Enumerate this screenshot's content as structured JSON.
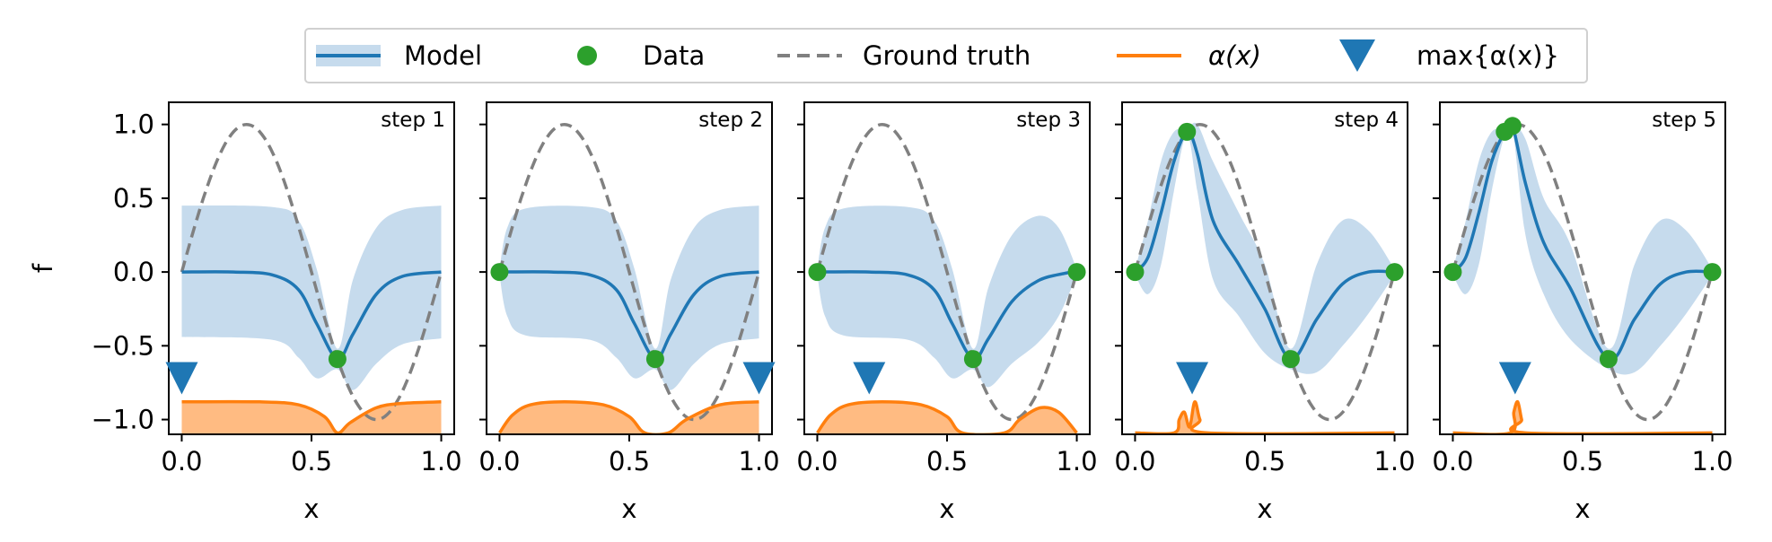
{
  "legend": {
    "entries": [
      {
        "label": "Model",
        "symbol": "band-line"
      },
      {
        "label": "Data",
        "symbol": "circle"
      },
      {
        "label": "Ground truth",
        "symbol": "dashed-line"
      },
      {
        "label": "α(x)",
        "symbol": "line"
      },
      {
        "label": "max{α(x)}",
        "symbol": "down-triangle"
      }
    ]
  },
  "colors": {
    "model": "#1f77b4",
    "band": "#c6dbed",
    "data": "#2ca02c",
    "truth": "#808080",
    "acq": "#ff7f0e",
    "acq_fill": "#ffbb82",
    "marker": "#1f77b4"
  },
  "chart_data": [
    {
      "type": "line",
      "panel_label": "step 1",
      "xlabel": "x",
      "ylabel": "f",
      "xlim": [
        -0.05,
        1.05
      ],
      "ylim": [
        -1.1,
        1.15
      ],
      "xticks": [
        "0.0",
        "0.5",
        "1.0"
      ],
      "yticks": [
        "1.0",
        "0.5",
        "0.0",
        "−0.5",
        "−1.0"
      ],
      "data_points": [
        [
          0.6,
          -0.59
        ]
      ],
      "model_mean": [
        [
          0.0,
          0.0
        ],
        [
          0.2,
          0.0
        ],
        [
          0.35,
          -0.02
        ],
        [
          0.45,
          -0.12
        ],
        [
          0.52,
          -0.35
        ],
        [
          0.6,
          -0.59
        ],
        [
          0.66,
          -0.42
        ],
        [
          0.75,
          -0.15
        ],
        [
          0.85,
          -0.03
        ],
        [
          1.0,
          0.0
        ]
      ],
      "model_upper": [
        [
          0.0,
          0.45
        ],
        [
          0.35,
          0.44
        ],
        [
          0.45,
          0.35
        ],
        [
          0.52,
          0.02
        ],
        [
          0.6,
          -0.52
        ],
        [
          0.66,
          -0.05
        ],
        [
          0.75,
          0.3
        ],
        [
          0.85,
          0.42
        ],
        [
          1.0,
          0.45
        ]
      ],
      "model_lower": [
        [
          0.0,
          -0.44
        ],
        [
          0.35,
          -0.46
        ],
        [
          0.45,
          -0.58
        ],
        [
          0.52,
          -0.72
        ],
        [
          0.6,
          -0.66
        ],
        [
          0.66,
          -0.8
        ],
        [
          0.75,
          -0.62
        ],
        [
          0.85,
          -0.49
        ],
        [
          1.0,
          -0.45
        ]
      ],
      "acquisition": [
        [
          0.0,
          -0.88
        ],
        [
          0.3,
          -0.88
        ],
        [
          0.45,
          -0.9
        ],
        [
          0.55,
          -0.98
        ],
        [
          0.6,
          -1.09
        ],
        [
          0.65,
          -1.02
        ],
        [
          0.75,
          -0.92
        ],
        [
          0.85,
          -0.89
        ],
        [
          1.0,
          -0.88
        ]
      ],
      "max_marker": [
        0.0,
        -0.72
      ]
    },
    {
      "type": "line",
      "panel_label": "step 2",
      "xlabel": "x",
      "xlim": [
        -0.05,
        1.05
      ],
      "ylim": [
        -1.1,
        1.15
      ],
      "xticks": [
        "0.0",
        "0.5",
        "1.0"
      ],
      "data_points": [
        [
          0.0,
          0.0
        ],
        [
          0.6,
          -0.59
        ]
      ],
      "model_mean": [
        [
          0.0,
          0.0
        ],
        [
          0.2,
          0.0
        ],
        [
          0.35,
          -0.02
        ],
        [
          0.45,
          -0.12
        ],
        [
          0.52,
          -0.35
        ],
        [
          0.6,
          -0.59
        ],
        [
          0.66,
          -0.42
        ],
        [
          0.75,
          -0.15
        ],
        [
          0.85,
          -0.03
        ],
        [
          1.0,
          0.0
        ]
      ],
      "model_upper": [
        [
          0.0,
          0.02
        ],
        [
          0.03,
          0.3
        ],
        [
          0.1,
          0.43
        ],
        [
          0.35,
          0.44
        ],
        [
          0.45,
          0.35
        ],
        [
          0.52,
          0.02
        ],
        [
          0.6,
          -0.52
        ],
        [
          0.66,
          -0.05
        ],
        [
          0.75,
          0.3
        ],
        [
          0.85,
          0.42
        ],
        [
          1.0,
          0.45
        ]
      ],
      "model_lower": [
        [
          0.0,
          -0.02
        ],
        [
          0.03,
          -0.3
        ],
        [
          0.1,
          -0.43
        ],
        [
          0.35,
          -0.46
        ],
        [
          0.45,
          -0.58
        ],
        [
          0.52,
          -0.72
        ],
        [
          0.6,
          -0.66
        ],
        [
          0.66,
          -0.8
        ],
        [
          0.75,
          -0.62
        ],
        [
          0.85,
          -0.49
        ],
        [
          1.0,
          -0.45
        ]
      ],
      "acquisition": [
        [
          0.0,
          -1.09
        ],
        [
          0.05,
          -0.97
        ],
        [
          0.12,
          -0.9
        ],
        [
          0.25,
          -0.88
        ],
        [
          0.4,
          -0.9
        ],
        [
          0.5,
          -0.98
        ],
        [
          0.56,
          -1.09
        ],
        [
          0.65,
          -1.09
        ],
        [
          0.72,
          -1.0
        ],
        [
          0.85,
          -0.9
        ],
        [
          1.0,
          -0.88
        ]
      ],
      "max_marker": [
        1.0,
        -0.72
      ]
    },
    {
      "type": "line",
      "panel_label": "step 3",
      "xlabel": "x",
      "xlim": [
        -0.05,
        1.05
      ],
      "ylim": [
        -1.1,
        1.15
      ],
      "xticks": [
        "0.0",
        "0.5",
        "1.0"
      ],
      "data_points": [
        [
          0.0,
          0.0
        ],
        [
          0.6,
          -0.59
        ],
        [
          1.0,
          0.0
        ]
      ],
      "model_mean": [
        [
          0.0,
          0.0
        ],
        [
          0.2,
          0.0
        ],
        [
          0.35,
          -0.02
        ],
        [
          0.45,
          -0.12
        ],
        [
          0.52,
          -0.35
        ],
        [
          0.6,
          -0.59
        ],
        [
          0.66,
          -0.45
        ],
        [
          0.75,
          -0.2
        ],
        [
          0.85,
          -0.06
        ],
        [
          0.95,
          -0.01
        ],
        [
          1.0,
          0.0
        ]
      ],
      "model_upper": [
        [
          0.0,
          0.02
        ],
        [
          0.03,
          0.3
        ],
        [
          0.1,
          0.43
        ],
        [
          0.35,
          0.44
        ],
        [
          0.45,
          0.35
        ],
        [
          0.52,
          0.02
        ],
        [
          0.6,
          -0.52
        ],
        [
          0.66,
          -0.1
        ],
        [
          0.75,
          0.25
        ],
        [
          0.85,
          0.38
        ],
        [
          0.93,
          0.3
        ],
        [
          1.0,
          0.02
        ]
      ],
      "model_lower": [
        [
          0.0,
          -0.02
        ],
        [
          0.03,
          -0.3
        ],
        [
          0.1,
          -0.43
        ],
        [
          0.35,
          -0.46
        ],
        [
          0.45,
          -0.58
        ],
        [
          0.52,
          -0.72
        ],
        [
          0.6,
          -0.66
        ],
        [
          0.66,
          -0.78
        ],
        [
          0.75,
          -0.62
        ],
        [
          0.85,
          -0.48
        ],
        [
          0.93,
          -0.3
        ],
        [
          1.0,
          -0.02
        ]
      ],
      "acquisition": [
        [
          0.0,
          -1.09
        ],
        [
          0.05,
          -0.97
        ],
        [
          0.12,
          -0.9
        ],
        [
          0.25,
          -0.88
        ],
        [
          0.4,
          -0.9
        ],
        [
          0.5,
          -0.98
        ],
        [
          0.56,
          -1.09
        ],
        [
          0.72,
          -1.09
        ],
        [
          0.78,
          -1.0
        ],
        [
          0.86,
          -0.92
        ],
        [
          0.93,
          -0.95
        ],
        [
          1.0,
          -1.09
        ]
      ],
      "max_marker": [
        0.2,
        -0.72
      ]
    },
    {
      "type": "line",
      "panel_label": "step 4",
      "xlabel": "x",
      "xlim": [
        -0.05,
        1.05
      ],
      "ylim": [
        -1.1,
        1.15
      ],
      "xticks": [
        "0.0",
        "0.5",
        "1.0"
      ],
      "data_points": [
        [
          0.0,
          0.0
        ],
        [
          0.2,
          0.95
        ],
        [
          0.6,
          -0.59
        ],
        [
          1.0,
          0.0
        ]
      ],
      "model_mean": [
        [
          0.0,
          0.0
        ],
        [
          0.05,
          0.1
        ],
        [
          0.1,
          0.4
        ],
        [
          0.15,
          0.75
        ],
        [
          0.2,
          0.95
        ],
        [
          0.24,
          0.8
        ],
        [
          0.3,
          0.35
        ],
        [
          0.4,
          0.05
        ],
        [
          0.5,
          -0.25
        ],
        [
          0.6,
          -0.59
        ],
        [
          0.7,
          -0.32
        ],
        [
          0.8,
          -0.08
        ],
        [
          0.9,
          0.0
        ],
        [
          1.0,
          0.0
        ]
      ],
      "model_upper": [
        [
          0.0,
          0.02
        ],
        [
          0.05,
          0.35
        ],
        [
          0.1,
          0.75
        ],
        [
          0.15,
          0.95
        ],
        [
          0.2,
          0.97
        ],
        [
          0.24,
          1.0
        ],
        [
          0.3,
          0.75
        ],
        [
          0.4,
          0.4
        ],
        [
          0.5,
          0.05
        ],
        [
          0.6,
          -0.52
        ],
        [
          0.7,
          0.05
        ],
        [
          0.8,
          0.35
        ],
        [
          0.9,
          0.28
        ],
        [
          1.0,
          0.02
        ]
      ],
      "model_lower": [
        [
          0.0,
          -0.02
        ],
        [
          0.05,
          -0.15
        ],
        [
          0.1,
          0.05
        ],
        [
          0.15,
          0.55
        ],
        [
          0.2,
          0.93
        ],
        [
          0.24,
          0.55
        ],
        [
          0.3,
          -0.05
        ],
        [
          0.4,
          -0.3
        ],
        [
          0.5,
          -0.55
        ],
        [
          0.6,
          -0.66
        ],
        [
          0.7,
          -0.68
        ],
        [
          0.8,
          -0.5
        ],
        [
          0.9,
          -0.28
        ],
        [
          1.0,
          -0.02
        ]
      ],
      "acquisition": [
        [
          0.0,
          -1.09
        ],
        [
          0.15,
          -1.09
        ],
        [
          0.17,
          -1.0
        ],
        [
          0.19,
          -0.95
        ],
        [
          0.21,
          -1.05
        ],
        [
          0.23,
          -0.88
        ],
        [
          0.25,
          -1.0
        ],
        [
          0.28,
          -1.09
        ],
        [
          1.0,
          -1.09
        ]
      ],
      "max_marker": [
        0.22,
        -0.72
      ]
    },
    {
      "type": "line",
      "panel_label": "step 5",
      "xlabel": "x",
      "xlim": [
        -0.05,
        1.05
      ],
      "ylim": [
        -1.1,
        1.15
      ],
      "xticks": [
        "0.0",
        "0.5",
        "1.0"
      ],
      "data_points": [
        [
          0.0,
          0.0
        ],
        [
          0.2,
          0.95
        ],
        [
          0.23,
          0.99
        ],
        [
          0.6,
          -0.59
        ],
        [
          1.0,
          0.0
        ]
      ],
      "model_mean": [
        [
          0.0,
          0.0
        ],
        [
          0.05,
          0.1
        ],
        [
          0.1,
          0.4
        ],
        [
          0.15,
          0.75
        ],
        [
          0.2,
          0.95
        ],
        [
          0.23,
          0.99
        ],
        [
          0.28,
          0.6
        ],
        [
          0.35,
          0.2
        ],
        [
          0.45,
          -0.1
        ],
        [
          0.6,
          -0.59
        ],
        [
          0.7,
          -0.32
        ],
        [
          0.8,
          -0.08
        ],
        [
          0.9,
          0.0
        ],
        [
          1.0,
          0.0
        ]
      ],
      "model_upper": [
        [
          0.0,
          0.02
        ],
        [
          0.05,
          0.35
        ],
        [
          0.1,
          0.75
        ],
        [
          0.15,
          0.95
        ],
        [
          0.2,
          0.97
        ],
        [
          0.23,
          1.0
        ],
        [
          0.28,
          0.9
        ],
        [
          0.35,
          0.5
        ],
        [
          0.45,
          0.2
        ],
        [
          0.6,
          -0.52
        ],
        [
          0.7,
          0.05
        ],
        [
          0.8,
          0.35
        ],
        [
          0.9,
          0.28
        ],
        [
          1.0,
          0.02
        ]
      ],
      "model_lower": [
        [
          0.0,
          -0.02
        ],
        [
          0.05,
          -0.15
        ],
        [
          0.1,
          0.05
        ],
        [
          0.15,
          0.55
        ],
        [
          0.2,
          0.93
        ],
        [
          0.23,
          0.97
        ],
        [
          0.28,
          0.25
        ],
        [
          0.35,
          -0.15
        ],
        [
          0.45,
          -0.45
        ],
        [
          0.6,
          -0.66
        ],
        [
          0.7,
          -0.68
        ],
        [
          0.8,
          -0.5
        ],
        [
          0.9,
          -0.28
        ],
        [
          1.0,
          -0.02
        ]
      ],
      "acquisition": [
        [
          0.0,
          -1.09
        ],
        [
          0.22,
          -1.09
        ],
        [
          0.235,
          -0.95
        ],
        [
          0.25,
          -0.88
        ],
        [
          0.265,
          -1.0
        ],
        [
          0.28,
          -1.09
        ],
        [
          1.0,
          -1.09
        ]
      ],
      "max_marker": [
        0.24,
        -0.72
      ]
    }
  ]
}
